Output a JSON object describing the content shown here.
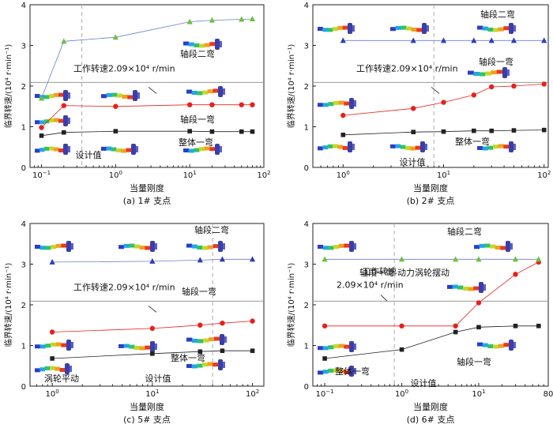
{
  "chart_data": [
    {
      "type": "line",
      "caption": "(a) 1# 支点",
      "xlabel": "当量刚度",
      "ylabel": "临界转速/(10⁴ r·min⁻¹)",
      "xscale": "log",
      "xlim": [
        0.07,
        100
      ],
      "ylim": [
        0,
        4
      ],
      "xticks": [
        0.1,
        1,
        10,
        100
      ],
      "xtick_labels": [
        "10⁻¹",
        "10⁰",
        "10¹",
        "10²"
      ],
      "yticks": [
        0,
        1,
        2,
        3,
        4
      ],
      "design_value_x": 0.35,
      "work_speed": 2.09,
      "work_speed_label": "工作转速2.09×10⁴ r/min",
      "series": [
        {
          "name": "整体一弯",
          "color": "#222222",
          "marker": "square",
          "x": [
            0.1,
            0.2,
            1,
            10,
            20,
            50,
            70
          ],
          "y": [
            0.78,
            0.86,
            0.89,
            0.89,
            0.88,
            0.88,
            0.88
          ]
        },
        {
          "name": "轴段一弯",
          "color": "#e8201a",
          "marker": "circle",
          "x": [
            0.1,
            0.2,
            1,
            10,
            20,
            50,
            70
          ],
          "y": [
            0.98,
            1.52,
            1.5,
            1.54,
            1.54,
            1.54,
            1.54
          ]
        },
        {
          "name": "轴段二弯",
          "color": "#6a7fd0",
          "marker": "triangle",
          "marker_color": "#6dc040",
          "x": [
            0.1,
            0.2,
            1,
            10,
            20,
            50,
            70
          ],
          "y": [
            1.7,
            3.1,
            3.2,
            3.58,
            3.62,
            3.64,
            3.65
          ]
        }
      ],
      "annotations": [
        "轴段二弯",
        "轴段一弯",
        "整体一弯",
        "设计值"
      ]
    },
    {
      "type": "line",
      "caption": "(b) 2# 支点",
      "xlabel": "当量刚度",
      "ylabel": "临界转速/(10⁴ r·min⁻¹)",
      "xscale": "log",
      "xlim": [
        0.5,
        110
      ],
      "ylim": [
        0,
        4
      ],
      "xticks": [
        1,
        10,
        100
      ],
      "xtick_labels": [
        "10⁰",
        "10¹",
        "10²"
      ],
      "yticks": [
        0,
        1,
        2,
        3,
        4
      ],
      "design_value_x": 8,
      "work_speed": 2.09,
      "work_speed_label": "工作转速2.09×10⁴ r/min",
      "series": [
        {
          "name": "整体一弯",
          "color": "#222222",
          "marker": "square",
          "x": [
            1,
            5,
            10,
            20,
            30,
            50,
            100
          ],
          "y": [
            0.8,
            0.87,
            0.88,
            0.9,
            0.9,
            0.91,
            0.92
          ]
        },
        {
          "name": "轴段一弯",
          "color": "#e8201a",
          "marker": "circle",
          "x": [
            1,
            5,
            10,
            20,
            30,
            50,
            100
          ],
          "y": [
            1.28,
            1.45,
            1.6,
            1.78,
            1.98,
            2.0,
            2.05
          ]
        },
        {
          "name": "轴段二弯",
          "color": "#6a7fd0",
          "marker": "triangle",
          "marker_color": "#2f3fb0",
          "x": [
            1,
            5,
            10,
            20,
            30,
            50,
            100
          ],
          "y": [
            3.12,
            3.12,
            3.12,
            3.12,
            3.12,
            3.12,
            3.12
          ]
        }
      ],
      "annotations": [
        "轴段二弯",
        "轴段一弯",
        "整体一弯",
        "设计值"
      ]
    },
    {
      "type": "line",
      "caption": "(c) 5# 支点",
      "xlabel": "当量刚度",
      "ylabel": "临界转速/(10⁴ r·min⁻¹)",
      "xscale": "log",
      "xlim": [
        0.6,
        130
      ],
      "ylim": [
        0,
        4
      ],
      "xticks": [
        1,
        10,
        100
      ],
      "xtick_labels": [
        "10⁰",
        "10¹",
        "10²"
      ],
      "yticks": [
        0,
        1,
        2,
        3,
        4
      ],
      "design_value_x": 40,
      "work_speed": 2.09,
      "work_speed_label": "工作转速2.09×10⁴ r/min",
      "series": [
        {
          "name": "整体一弯",
          "color": "#222222",
          "marker": "square",
          "x": [
            1,
            10,
            30,
            50,
            100
          ],
          "y": [
            0.68,
            0.8,
            0.85,
            0.87,
            0.87
          ]
        },
        {
          "name": "轴段一弯",
          "color": "#e8201a",
          "marker": "circle",
          "x": [
            1,
            10,
            30,
            50,
            100
          ],
          "y": [
            1.33,
            1.42,
            1.5,
            1.55,
            1.6
          ]
        },
        {
          "name": "轴段二弯",
          "color": "#6a7fd0",
          "marker": "triangle",
          "marker_color": "#2f3fb0",
          "x": [
            1,
            10,
            30,
            50,
            100
          ],
          "y": [
            3.05,
            3.07,
            3.1,
            3.12,
            3.12
          ]
        }
      ],
      "annotations": [
        "轴段二弯",
        "轴段一弯",
        "整体一弯",
        "涡轮平动",
        "设计值"
      ]
    },
    {
      "type": "line",
      "caption": "(d) 6# 支点",
      "xlabel": "当量刚度",
      "ylabel": "临界转速/(10⁴ r·min⁻¹)",
      "xscale": "log",
      "xlim": [
        0.07,
        80
      ],
      "ylim": [
        0,
        4
      ],
      "xticks": [
        0.1,
        1,
        10,
        80
      ],
      "xtick_labels": [
        "10⁻¹",
        "10⁰",
        "10¹",
        "80"
      ],
      "yticks": [
        0,
        1,
        2,
        3,
        4
      ],
      "design_value_x": 0.8,
      "work_speed": 2.09,
      "work_speed_label": "工作转速\n2.09×10⁴ r/min",
      "work_speed_label_lines": [
        "工作转速",
        "2.09×10⁴ r/min"
      ],
      "series": [
        {
          "name": "整体一弯",
          "color": "#222222",
          "marker": "square",
          "x": [
            0.1,
            1,
            5,
            10,
            30,
            60
          ],
          "y": [
            0.68,
            0.9,
            1.33,
            1.45,
            1.48,
            1.48
          ]
        },
        {
          "name": "轴段一弯-动力涡轮摆动",
          "color": "#e8201a",
          "marker": "circle",
          "x": [
            0.1,
            1,
            5,
            10,
            30,
            60
          ],
          "y": [
            1.48,
            1.48,
            1.48,
            2.05,
            2.75,
            3.05
          ]
        },
        {
          "name": "轴段二弯",
          "color": "#6a7fd0",
          "marker": "triangle",
          "marker_color": "#6dc040",
          "x": [
            0.1,
            1,
            5,
            10,
            30,
            60
          ],
          "y": [
            3.12,
            3.12,
            3.12,
            3.12,
            3.12,
            3.12
          ]
        }
      ],
      "annotations": [
        "轴段二弯",
        "轴段一弯-动力涡轮摆动",
        "轴段一弯",
        "整体一弯",
        "设计值"
      ]
    }
  ]
}
